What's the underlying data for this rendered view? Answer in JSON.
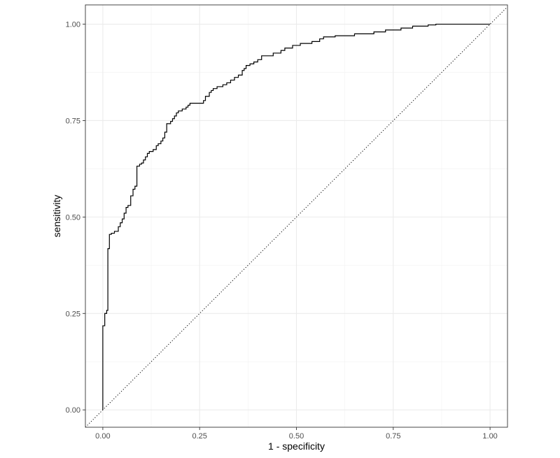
{
  "chart_data": {
    "type": "line",
    "title": "",
    "xlabel": "1 - specificity",
    "ylabel": "sensitivity",
    "xlim": [
      -0.045,
      1.045
    ],
    "ylim": [
      -0.045,
      1.05
    ],
    "x_ticks": [
      0.0,
      0.25,
      0.5,
      0.75,
      1.0
    ],
    "x_tick_labels": [
      "0.00",
      "0.25",
      "0.50",
      "0.75",
      "1.00"
    ],
    "y_ticks": [
      0.0,
      0.25,
      0.5,
      0.75,
      1.0
    ],
    "y_tick_labels": [
      "0.00",
      "0.25",
      "0.50",
      "0.75",
      "1.00"
    ],
    "grid": true,
    "theme": "bw",
    "reference_line": {
      "type": "diagonal",
      "style": "dotted",
      "from": [
        -0.045,
        -0.045
      ],
      "to": [
        1.045,
        1.045
      ]
    },
    "series": [
      {
        "style": "step",
        "color": "#000000",
        "points": [
          [
            0.0,
            0.0
          ],
          [
            0.0,
            0.218
          ],
          [
            0.005,
            0.218
          ],
          [
            0.005,
            0.25
          ],
          [
            0.01,
            0.25
          ],
          [
            0.01,
            0.258
          ],
          [
            0.013,
            0.258
          ],
          [
            0.013,
            0.418
          ],
          [
            0.017,
            0.418
          ],
          [
            0.017,
            0.455
          ],
          [
            0.022,
            0.455
          ],
          [
            0.022,
            0.458
          ],
          [
            0.03,
            0.458
          ],
          [
            0.03,
            0.463
          ],
          [
            0.04,
            0.463
          ],
          [
            0.04,
            0.475
          ],
          [
            0.045,
            0.475
          ],
          [
            0.045,
            0.485
          ],
          [
            0.05,
            0.485
          ],
          [
            0.05,
            0.495
          ],
          [
            0.055,
            0.495
          ],
          [
            0.055,
            0.51
          ],
          [
            0.06,
            0.51
          ],
          [
            0.06,
            0.525
          ],
          [
            0.065,
            0.525
          ],
          [
            0.065,
            0.53
          ],
          [
            0.072,
            0.53
          ],
          [
            0.072,
            0.555
          ],
          [
            0.078,
            0.555
          ],
          [
            0.078,
            0.572
          ],
          [
            0.083,
            0.572
          ],
          [
            0.083,
            0.58
          ],
          [
            0.088,
            0.58
          ],
          [
            0.088,
            0.632
          ],
          [
            0.095,
            0.632
          ],
          [
            0.095,
            0.637
          ],
          [
            0.1,
            0.637
          ],
          [
            0.1,
            0.64
          ],
          [
            0.105,
            0.64
          ],
          [
            0.105,
            0.648
          ],
          [
            0.11,
            0.648
          ],
          [
            0.11,
            0.656
          ],
          [
            0.115,
            0.656
          ],
          [
            0.115,
            0.665
          ],
          [
            0.12,
            0.665
          ],
          [
            0.12,
            0.67
          ],
          [
            0.13,
            0.67
          ],
          [
            0.13,
            0.675
          ],
          [
            0.138,
            0.675
          ],
          [
            0.138,
            0.685
          ],
          [
            0.143,
            0.685
          ],
          [
            0.143,
            0.69
          ],
          [
            0.15,
            0.69
          ],
          [
            0.15,
            0.697
          ],
          [
            0.155,
            0.697
          ],
          [
            0.155,
            0.705
          ],
          [
            0.16,
            0.705
          ],
          [
            0.16,
            0.72
          ],
          [
            0.165,
            0.72
          ],
          [
            0.165,
            0.742
          ],
          [
            0.175,
            0.742
          ],
          [
            0.175,
            0.748
          ],
          [
            0.18,
            0.748
          ],
          [
            0.18,
            0.755
          ],
          [
            0.185,
            0.755
          ],
          [
            0.185,
            0.762
          ],
          [
            0.19,
            0.762
          ],
          [
            0.19,
            0.77
          ],
          [
            0.195,
            0.77
          ],
          [
            0.195,
            0.775
          ],
          [
            0.205,
            0.775
          ],
          [
            0.205,
            0.78
          ],
          [
            0.215,
            0.78
          ],
          [
            0.215,
            0.785
          ],
          [
            0.22,
            0.785
          ],
          [
            0.22,
            0.79
          ],
          [
            0.225,
            0.79
          ],
          [
            0.225,
            0.795
          ],
          [
            0.26,
            0.795
          ],
          [
            0.26,
            0.802
          ],
          [
            0.265,
            0.802
          ],
          [
            0.265,
            0.813
          ],
          [
            0.275,
            0.813
          ],
          [
            0.275,
            0.823
          ],
          [
            0.28,
            0.823
          ],
          [
            0.28,
            0.828
          ],
          [
            0.285,
            0.828
          ],
          [
            0.285,
            0.833
          ],
          [
            0.295,
            0.833
          ],
          [
            0.295,
            0.838
          ],
          [
            0.31,
            0.838
          ],
          [
            0.31,
            0.843
          ],
          [
            0.32,
            0.843
          ],
          [
            0.32,
            0.848
          ],
          [
            0.33,
            0.848
          ],
          [
            0.33,
            0.855
          ],
          [
            0.34,
            0.855
          ],
          [
            0.34,
            0.862
          ],
          [
            0.35,
            0.862
          ],
          [
            0.35,
            0.868
          ],
          [
            0.36,
            0.868
          ],
          [
            0.36,
            0.88
          ],
          [
            0.365,
            0.88
          ],
          [
            0.365,
            0.885
          ],
          [
            0.37,
            0.885
          ],
          [
            0.37,
            0.893
          ],
          [
            0.38,
            0.893
          ],
          [
            0.38,
            0.897
          ],
          [
            0.39,
            0.897
          ],
          [
            0.39,
            0.902
          ],
          [
            0.4,
            0.902
          ],
          [
            0.4,
            0.908
          ],
          [
            0.41,
            0.908
          ],
          [
            0.41,
            0.918
          ],
          [
            0.44,
            0.918
          ],
          [
            0.44,
            0.925
          ],
          [
            0.46,
            0.925
          ],
          [
            0.46,
            0.932
          ],
          [
            0.47,
            0.932
          ],
          [
            0.47,
            0.938
          ],
          [
            0.49,
            0.938
          ],
          [
            0.49,
            0.945
          ],
          [
            0.51,
            0.945
          ],
          [
            0.51,
            0.95
          ],
          [
            0.54,
            0.95
          ],
          [
            0.54,
            0.955
          ],
          [
            0.56,
            0.955
          ],
          [
            0.56,
            0.962
          ],
          [
            0.57,
            0.962
          ],
          [
            0.57,
            0.967
          ],
          [
            0.6,
            0.967
          ],
          [
            0.6,
            0.97
          ],
          [
            0.65,
            0.97
          ],
          [
            0.65,
            0.975
          ],
          [
            0.7,
            0.975
          ],
          [
            0.7,
            0.98
          ],
          [
            0.73,
            0.98
          ],
          [
            0.73,
            0.985
          ],
          [
            0.77,
            0.985
          ],
          [
            0.77,
            0.99
          ],
          [
            0.8,
            0.99
          ],
          [
            0.8,
            0.995
          ],
          [
            0.84,
            0.995
          ],
          [
            0.84,
            0.998
          ],
          [
            0.86,
            0.998
          ],
          [
            0.86,
            1.0
          ],
          [
            1.0,
            1.0
          ]
        ]
      }
    ]
  }
}
